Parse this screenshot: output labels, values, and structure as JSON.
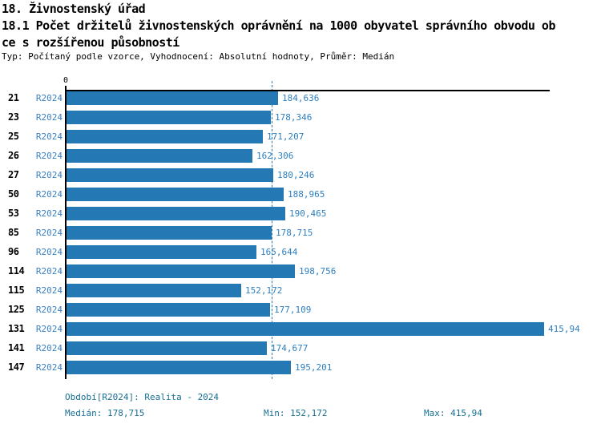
{
  "header": {
    "title": "18. Živnostenský úřad",
    "subtitle_line1": "18.1 Počet držitelů živnostenských oprávnění na 1000 obyvatel správního obvodu ob",
    "subtitle_line2": "ce s rozšířenou působností",
    "meta": "Typ: Počítaný podle vzorce, Vyhodnocení: Absolutní hodnoty, Průměr: Medián"
  },
  "chart_data": {
    "type": "bar",
    "orientation": "horizontal",
    "title": "18.1 Počet držitelů živnostenských oprávnění na 1000 obyvatel správního obvodu obce s rozšířenou působností",
    "axis_zero_label": "0",
    "series_label": "R2024",
    "categories": [
      "21",
      "23",
      "25",
      "26",
      "27",
      "50",
      "53",
      "85",
      "96",
      "114",
      "115",
      "125",
      "131",
      "141",
      "147"
    ],
    "values": [
      184.636,
      178.346,
      171.207,
      162.306,
      180.246,
      188.965,
      190.465,
      178.715,
      165.644,
      198.756,
      152.172,
      177.109,
      415.94,
      174.677,
      195.201
    ],
    "value_labels": [
      "184,636",
      "178,346",
      "171,207",
      "162,306",
      "180,246",
      "188,965",
      "190,465",
      "178,715",
      "165,644",
      "198,756",
      "152,172",
      "177,109",
      "415,94",
      "174,677",
      "195,201"
    ],
    "xlim": [
      0,
      421
    ],
    "median_value": 178.715,
    "grid": false,
    "legend_position": "none",
    "bar_color": "#2478b4",
    "median_line_color": "#2a7ab8",
    "value_label_color": "#2e7fc0",
    "footer_text_color": "#176f93"
  },
  "footer": {
    "period": "Období[R2024]: Realita - 2024",
    "median": "Medián: 178,715",
    "min": "Min: 152,172",
    "max": "Max: 415,94"
  }
}
